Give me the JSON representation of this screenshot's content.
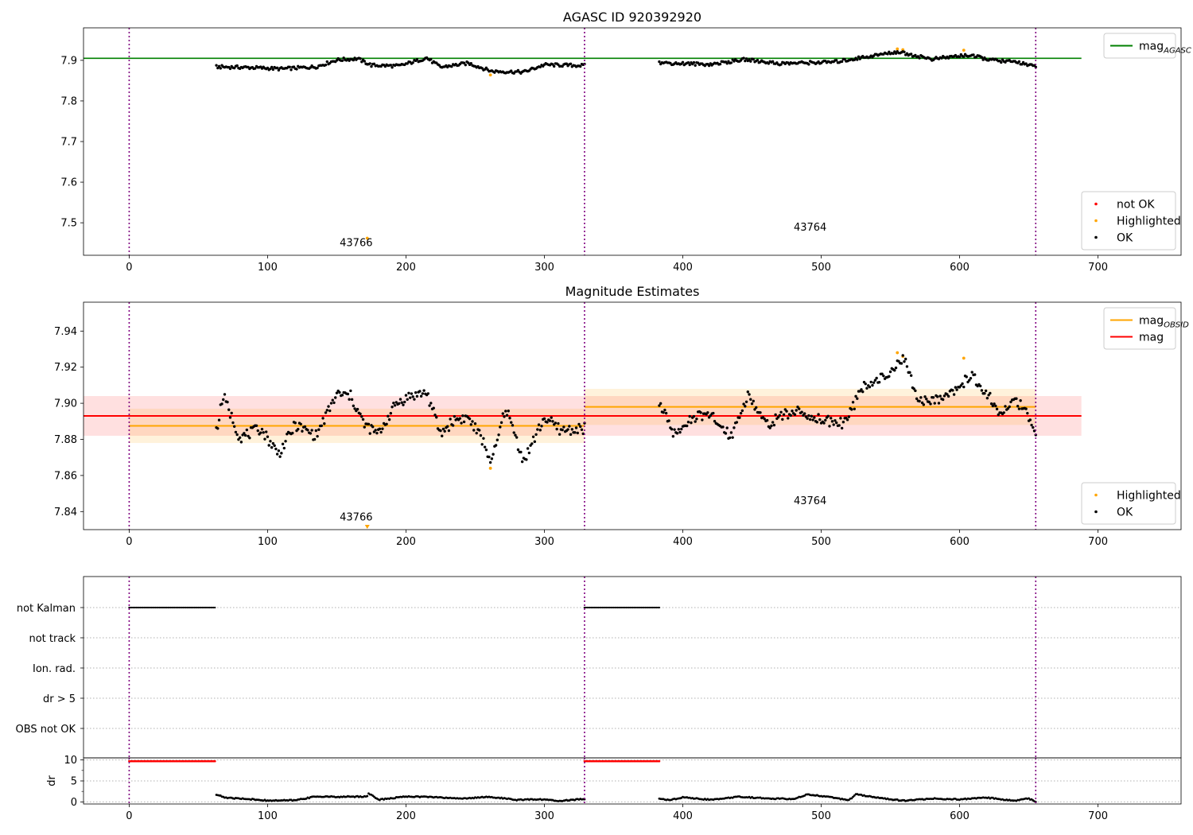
{
  "chart_data": [
    {
      "type": "scatter",
      "title": "AGASC ID 920392920",
      "xlabel": "",
      "ylabel": "",
      "xlim": [
        -33,
        760
      ],
      "ylim": [
        7.42,
        7.98
      ],
      "xticks": [
        0,
        100,
        200,
        300,
        400,
        500,
        600,
        700
      ],
      "yticks": [
        7.5,
        7.6,
        7.7,
        7.8,
        7.9
      ],
      "obsid_boundaries": [
        0,
        329,
        655
      ],
      "hlines": [
        {
          "name": "mag_AGASC",
          "y": 7.905,
          "x_range": [
            -33,
            688
          ],
          "color": "#008000"
        }
      ],
      "annotations": [
        {
          "text": "43766",
          "x": 164,
          "y": 7.443
        },
        {
          "text": "43764",
          "x": 492,
          "y": 7.481
        }
      ],
      "series": [
        {
          "name": "not OK",
          "color": "#ff0000",
          "points": []
        },
        {
          "name": "Highlighted",
          "color": "#ffa500",
          "points": [
            [
              172,
              7.462
            ],
            [
              261,
              7.864
            ],
            [
              555,
              7.928
            ],
            [
              559,
              7.926
            ],
            [
              603,
              7.925
            ]
          ]
        },
        {
          "name": "OK",
          "color": "#000000",
          "segments": [
            {
              "x_from": 63,
              "x_to": 329,
              "anchors": [
                [
                  63,
                  7.884
                ],
                [
                  90,
                  7.882
                ],
                [
                  110,
                  7.879
                ],
                [
                  135,
                  7.884
                ],
                [
                  150,
                  7.901
                ],
                [
                  165,
                  7.904
                ],
                [
                  175,
                  7.888
                ],
                [
                  195,
                  7.886
                ],
                [
                  215,
                  7.906
                ],
                [
                  225,
                  7.883
                ],
                [
                  245,
                  7.893
                ],
                [
                  262,
                  7.873
                ],
                [
                  285,
                  7.871
                ],
                [
                  300,
                  7.889
                ],
                [
                  329,
                  7.887
                ]
              ]
            },
            {
              "x_from": 383,
              "x_to": 655,
              "anchors": [
                [
                  383,
                  7.894
                ],
                [
                  420,
                  7.89
                ],
                [
                  445,
                  7.902
                ],
                [
                  470,
                  7.892
                ],
                [
                  510,
                  7.896
                ],
                [
                  535,
                  7.91
                ],
                [
                  555,
                  7.921
                ],
                [
                  580,
                  7.903
                ],
                [
                  605,
                  7.913
                ],
                [
                  625,
                  7.9
                ],
                [
                  645,
                  7.894
                ],
                [
                  655,
                  7.883
                ]
              ]
            }
          ]
        }
      ],
      "legends": [
        {
          "position": "upper-right",
          "entries": [
            {
              "label": "mag",
              "sub": "AGASC",
              "kind": "line",
              "color": "#008000"
            }
          ]
        },
        {
          "position": "lower-right",
          "entries": [
            {
              "label": "not OK",
              "kind": "marker",
              "color": "#ff0000"
            },
            {
              "label": "Highlighted",
              "kind": "marker",
              "color": "#ffa500"
            },
            {
              "label": "OK",
              "kind": "marker",
              "color": "#000000"
            }
          ]
        }
      ]
    },
    {
      "type": "scatter",
      "title": "Magnitude Estimates",
      "xlabel": "",
      "ylabel": "",
      "xlim": [
        -33,
        760
      ],
      "ylim": [
        7.83,
        7.956
      ],
      "xticks": [
        0,
        100,
        200,
        300,
        400,
        500,
        600,
        700
      ],
      "yticks": [
        7.84,
        7.86,
        7.88,
        7.9,
        7.92,
        7.94
      ],
      "obsid_boundaries": [
        0,
        329,
        655
      ],
      "bands": [
        {
          "name": "mag band",
          "x_range": [
            -33,
            688
          ],
          "y_range": [
            7.882,
            7.904
          ],
          "color": "#ff0000",
          "opacity": 0.12
        },
        {
          "name": "mag_OBSID band 43766",
          "x_range": [
            0,
            329
          ],
          "y_range": [
            7.878,
            7.897
          ],
          "color": "#ffa500",
          "opacity": 0.14
        },
        {
          "name": "mag_OBSID band 43764",
          "x_range": [
            329,
            655
          ],
          "y_range": [
            7.888,
            7.908
          ],
          "color": "#ffa500",
          "opacity": 0.14
        }
      ],
      "hlines": [
        {
          "name": "mag",
          "y": 7.893,
          "x_range": [
            -33,
            688
          ],
          "color": "#ff0000"
        },
        {
          "name": "mag_OBSID",
          "y": 7.8875,
          "x_range": [
            0,
            329
          ],
          "color": "#ffa500"
        },
        {
          "name": "mag_OBSID",
          "y": 7.898,
          "x_range": [
            329,
            655
          ],
          "color": "#ffa500"
        }
      ],
      "annotations": [
        {
          "text": "43766",
          "x": 164,
          "y": 7.835
        },
        {
          "text": "43764",
          "x": 492,
          "y": 7.844
        }
      ],
      "series": [
        {
          "name": "Highlighted",
          "color": "#ffa500",
          "points": [
            [
              261,
              7.864
            ],
            [
              555,
              7.928
            ],
            [
              559,
              7.926
            ],
            [
              603,
              7.925
            ]
          ],
          "offscale_points": [
            [
              172,
              7.831
            ]
          ]
        },
        {
          "name": "OK",
          "color": "#000000",
          "segments": [
            {
              "x_from": 63,
              "x_to": 329,
              "anchors": [
                [
                  63,
                  7.885
                ],
                [
                  68,
                  7.904
                ],
                [
                  80,
                  7.881
                ],
                [
                  95,
                  7.886
                ],
                [
                  108,
                  7.872
                ],
                [
                  120,
                  7.888
                ],
                [
                  135,
                  7.882
                ],
                [
                  150,
                  7.905
                ],
                [
                  160,
                  7.904
                ],
                [
                  170,
                  7.888
                ],
                [
                  180,
                  7.883
                ],
                [
                  193,
                  7.9
                ],
                [
                  203,
                  7.904
                ],
                [
                  215,
                  7.906
                ],
                [
                  225,
                  7.883
                ],
                [
                  235,
                  7.891
                ],
                [
                  245,
                  7.892
                ],
                [
                  255,
                  7.88
                ],
                [
                  262,
                  7.867
                ],
                [
                  272,
                  7.898
                ],
                [
                  285,
                  7.868
                ],
                [
                  300,
                  7.892
                ],
                [
                  312,
                  7.885
                ],
                [
                  329,
                  7.886
                ]
              ]
            },
            {
              "x_from": 383,
              "x_to": 655,
              "anchors": [
                [
                  383,
                  7.9
                ],
                [
                  395,
                  7.881
                ],
                [
                  405,
                  7.892
                ],
                [
                  420,
                  7.893
                ],
                [
                  435,
                  7.882
                ],
                [
                  447,
                  7.905
                ],
                [
                  460,
                  7.888
                ],
                [
                  480,
                  7.896
                ],
                [
                  500,
                  7.891
                ],
                [
                  515,
                  7.889
                ],
                [
                  525,
                  7.901
                ],
                [
                  532,
                  7.911
                ],
                [
                  545,
                  7.914
                ],
                [
                  554,
                  7.921
                ],
                [
                  560,
                  7.924
                ],
                [
                  570,
                  7.901
                ],
                [
                  585,
                  7.903
                ],
                [
                  600,
                  7.909
                ],
                [
                  608,
                  7.916
                ],
                [
                  620,
                  7.905
                ],
                [
                  630,
                  7.893
                ],
                [
                  640,
                  7.903
                ],
                [
                  648,
                  7.894
                ],
                [
                  655,
                  7.882
                ]
              ]
            }
          ]
        }
      ],
      "legends": [
        {
          "position": "upper-right",
          "entries": [
            {
              "label": "mag",
              "sub": "OBSID",
              "kind": "line",
              "color": "#ffa500"
            },
            {
              "label": "mag",
              "kind": "line",
              "color": "#ff0000"
            }
          ]
        },
        {
          "position": "lower-right",
          "entries": [
            {
              "label": "Highlighted",
              "kind": "marker",
              "color": "#ffa500"
            },
            {
              "label": "OK",
              "kind": "marker",
              "color": "#000000"
            }
          ]
        }
      ]
    },
    {
      "type": "scatter",
      "title": "",
      "xlabel": "",
      "ylabel": "",
      "xlim": [
        -33,
        760
      ],
      "categories": [
        "not Kalman",
        "not track",
        "Ion. rad.",
        "dr > 5",
        "OBS not OK"
      ],
      "obsid_boundaries": [
        0,
        329,
        655
      ],
      "flag_runs": [
        {
          "category": "not Kalman",
          "x_from": 0,
          "x_to": 62,
          "color": "#000000"
        },
        {
          "category": "not Kalman",
          "x_from": 329,
          "x_to": 383,
          "color": "#000000"
        }
      ]
    },
    {
      "type": "scatter",
      "title": "",
      "xlabel": "",
      "ylabel": "dr",
      "xlim": [
        -33,
        760
      ],
      "ylim": [
        -0.5,
        10.5
      ],
      "xticks": [
        0,
        100,
        200,
        300,
        400,
        500,
        600,
        700
      ],
      "yticks": [
        0,
        5,
        10
      ],
      "obsid_boundaries": [
        0,
        329,
        655
      ],
      "series": [
        {
          "name": "dr > 5",
          "color": "#ff0000",
          "segments": [
            {
              "x_from": 0,
              "x_to": 62,
              "value": 9.7
            },
            {
              "x_from": 329,
              "x_to": 383,
              "value": 9.7
            }
          ]
        },
        {
          "name": "dr",
          "color": "#000000",
          "segments": [
            {
              "x_from": 63,
              "x_to": 329,
              "anchors": [
                [
                  63,
                  1.7
                ],
                [
                  70,
                  1.0
                ],
                [
                  90,
                  0.6
                ],
                [
                  100,
                  0.3
                ],
                [
                  120,
                  0.4
                ],
                [
                  135,
                  1.3
                ],
                [
                  150,
                  1.2
                ],
                [
                  172,
                  1.3
                ],
                [
                  173,
                  2.1
                ],
                [
                  180,
                  0.5
                ],
                [
                  200,
                  1.3
                ],
                [
                  215,
                  1.2
                ],
                [
                  240,
                  0.8
                ],
                [
                  260,
                  1.2
                ],
                [
                  280,
                  0.5
                ],
                [
                  300,
                  0.6
                ],
                [
                  310,
                  0.2
                ],
                [
                  329,
                  0.7
                ]
              ]
            },
            {
              "x_from": 383,
              "x_to": 655,
              "anchors": [
                [
                  383,
                  0.8
                ],
                [
                  390,
                  0.4
                ],
                [
                  400,
                  1.1
                ],
                [
                  420,
                  0.5
                ],
                [
                  440,
                  1.2
                ],
                [
                  465,
                  0.8
                ],
                [
                  480,
                  0.7
                ],
                [
                  490,
                  1.8
                ],
                [
                  505,
                  1.2
                ],
                [
                  520,
                  0.4
                ],
                [
                  525,
                  1.8
                ],
                [
                  540,
                  1.0
                ],
                [
                  560,
                  0.3
                ],
                [
                  580,
                  0.8
                ],
                [
                  600,
                  0.6
                ],
                [
                  620,
                  1.0
                ],
                [
                  640,
                  0.3
                ],
                [
                  650,
                  0.8
                ],
                [
                  655,
                  0.1
                ]
              ]
            }
          ]
        }
      ]
    }
  ]
}
